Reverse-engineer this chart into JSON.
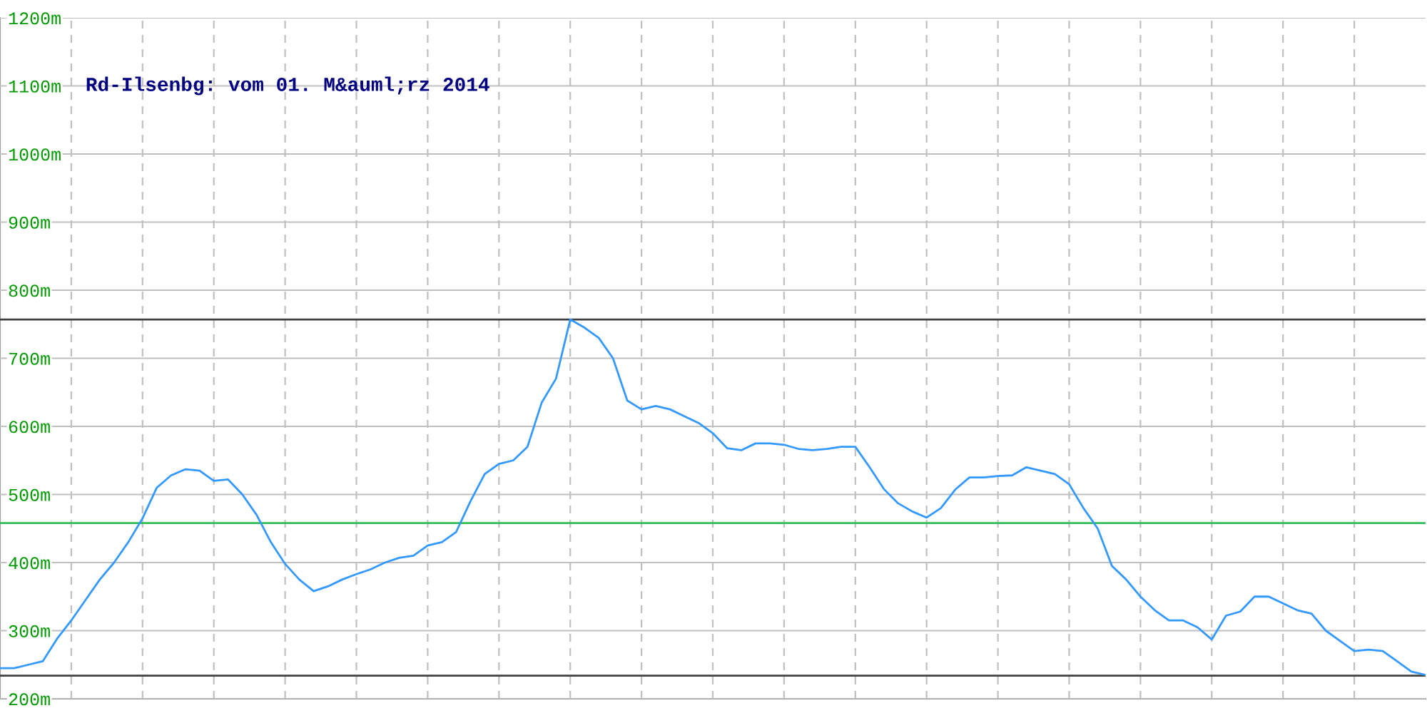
{
  "chart_data": {
    "type": "line",
    "title": "Rd-Ilsenbg: vom 01. M&auml;rz 2014",
    "categories": [
      null,
      null,
      null,
      null,
      null,
      null,
      null,
      null,
      null,
      null,
      null,
      null,
      null,
      null,
      null,
      null,
      null,
      null,
      null,
      null,
      null,
      null,
      null,
      null,
      null,
      null,
      null,
      null,
      null,
      null,
      null,
      null,
      null,
      null,
      null,
      null,
      null,
      null,
      null,
      null,
      null,
      null,
      null,
      null,
      null,
      null,
      null,
      null,
      null,
      null,
      null,
      null,
      null,
      null,
      null,
      null,
      null,
      null,
      null,
      null,
      null,
      null,
      null,
      null,
      null,
      null,
      null,
      null,
      null,
      null,
      null,
      null,
      null,
      null,
      null,
      null,
      null,
      null,
      null,
      null,
      null,
      null,
      null,
      null,
      null,
      null,
      null,
      null,
      null,
      null,
      null,
      null,
      null,
      null,
      null,
      null,
      null,
      null,
      null,
      null,
      null
    ],
    "series": [
      {
        "color": "#3399ff",
        "values": [
          245,
          245,
          250,
          255,
          288,
          315,
          345,
          375,
          400,
          430,
          465,
          510,
          528,
          537,
          535,
          520,
          522,
          500,
          470,
          430,
          398,
          375,
          358,
          365,
          375,
          383,
          390,
          400,
          407,
          410,
          425,
          430,
          445,
          490,
          530,
          545,
          550,
          570,
          635,
          670,
          757,
          745,
          730,
          700,
          638,
          625,
          630,
          625,
          615,
          605,
          590,
          568,
          565,
          575,
          575,
          573,
          567,
          565,
          567,
          570,
          570,
          540,
          508,
          487,
          475,
          466,
          480,
          507,
          525,
          525,
          527,
          528,
          540,
          535,
          530,
          515,
          480,
          450,
          395,
          375,
          350,
          330,
          315,
          315,
          305,
          287,
          322,
          328,
          350,
          350,
          340,
          330,
          325,
          300,
          285,
          270,
          272,
          270,
          255,
          240,
          235
        ]
      }
    ],
    "ylim": [
      200,
      1200
    ],
    "yticks": [
      {
        "value": 200,
        "label": "200m"
      },
      {
        "value": 300,
        "label": "300m"
      },
      {
        "value": 400,
        "label": "400m"
      },
      {
        "value": 500,
        "label": "500m"
      },
      {
        "value": 600,
        "label": "600m"
      },
      {
        "value": 700,
        "label": "700m"
      },
      {
        "value": 800,
        "label": "800m"
      },
      {
        "value": 900,
        "label": "900m"
      },
      {
        "value": 1000,
        "label": "1000m"
      },
      {
        "value": 1100,
        "label": "1100m"
      },
      {
        "value": 1200,
        "label": "1200m"
      }
    ],
    "ref_lines": [
      {
        "axis": "y",
        "value": 757,
        "color": "#404040"
      },
      {
        "axis": "y",
        "value": 458,
        "color": "#33bb55"
      },
      {
        "axis": "y",
        "value": 234,
        "color": "#404040"
      }
    ],
    "grid": true,
    "tick_labels": "y"
  }
}
